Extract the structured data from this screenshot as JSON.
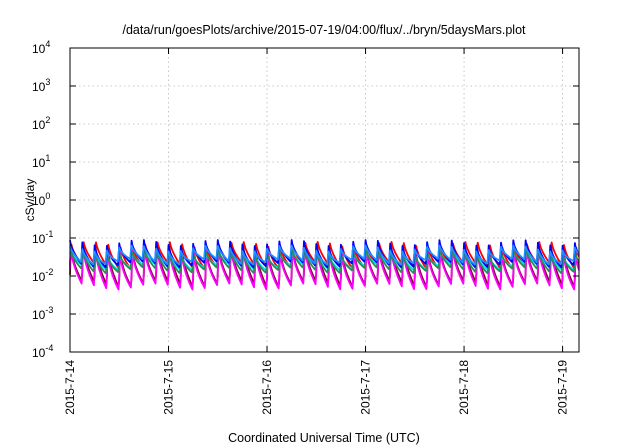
{
  "chart_data": {
    "type": "line",
    "title": "/data/run/goesPlots/archive/2015-07-19/04:00/flux/../bryn/5daysMars.plot",
    "xlabel": "Coordinated Universal Time (UTC)",
    "ylabel": "cSv/day",
    "y_scale": "log",
    "ylim": [
      0.0001,
      10000
    ],
    "y_ticks": [
      {
        "value": 0.0001,
        "base": "10",
        "exp": "-4"
      },
      {
        "value": 0.001,
        "base": "10",
        "exp": "-3"
      },
      {
        "value": 0.01,
        "base": "10",
        "exp": "-2"
      },
      {
        "value": 0.1,
        "base": "10",
        "exp": "-1"
      },
      {
        "value": 1,
        "base": "10",
        "exp": "0"
      },
      {
        "value": 10,
        "base": "10",
        "exp": "1"
      },
      {
        "value": 100,
        "base": "10",
        "exp": "2"
      },
      {
        "value": 1000,
        "base": "10",
        "exp": "3"
      },
      {
        "value": 10000,
        "base": "10",
        "exp": "4"
      }
    ],
    "xlim": [
      "2015-07-14T00:00",
      "2015-07-19T04:00"
    ],
    "x_ticks": [
      "2015-7-14",
      "2015-7-15",
      "2015-7-16",
      "2015-7-17",
      "2015-7-18",
      "2015-7-19"
    ],
    "grid": true,
    "legend": "none",
    "sawtooth_period_hours": 3,
    "series": [
      {
        "color": "#ff0000",
        "peak": 0.085,
        "trough": 0.018
      },
      {
        "color": "#7a0a2a",
        "peak": 0.07,
        "trough": 0.006
      },
      {
        "color": "#ff00ff",
        "peak": 0.06,
        "trough": 0.0052
      },
      {
        "color": "#00e5ee",
        "peak": 0.045,
        "trough": 0.017
      },
      {
        "color": "#2e8b57",
        "peak": 0.05,
        "trough": 0.014
      },
      {
        "color": "#0000ff",
        "peak": 0.08,
        "trough": 0.02
      },
      {
        "color": "#1e90ff",
        "peak": 0.06,
        "trough": 0.024
      }
    ]
  }
}
